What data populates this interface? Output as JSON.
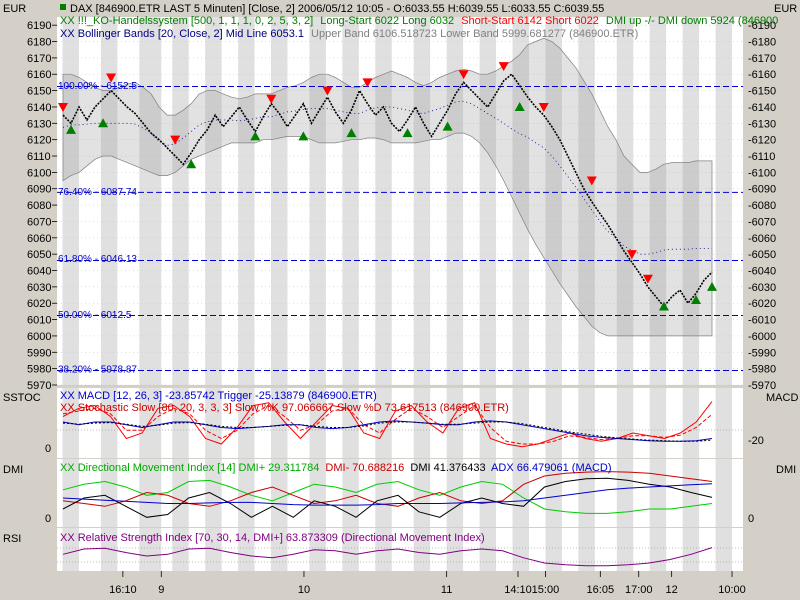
{
  "header": {
    "left_currency": "EUR",
    "right_currency": "EUR",
    "line1": "DAX [846900.ETR LAST 5 Minuten] [Close, 2] 2006/05/12 10:05 - O:6033.55 H:6039.55 L:6033.55 C:6039.55",
    "line2a": "XX !!!_KO-Handelssystem [500, 1, 1, 1, 0, 2, 5, 3, 2]",
    "line2b": "Long-Start 6022 Long 6032",
    "line2c": "Short-Start 6142 Short 6022",
    "line2d": "DMI up -/- DMI down 5924 (846900",
    "line3a": "XX Bollinger Bands [20, Close, 2] Mid Line 6053.1",
    "line3b": "Upper Band 6106.518723 Lower Band 5999.681277 (846900.ETR)"
  },
  "fib_labels": [
    {
      "text": "100.00% - 6152.5",
      "value": 6153.5
    },
    {
      "text": "76.40% - 6087.74",
      "value": 6088.5
    },
    {
      "text": "61.80% - 6046.13",
      "value": 6047.5
    },
    {
      "text": "50.00% - 6012.5",
      "value": 6013.5
    },
    {
      "text": "38.20% - 5978.87",
      "value": 5980
    }
  ],
  "panels": {
    "macd": {
      "side_label_left": "SSTOC",
      "side_label_right": "MACD",
      "title1": "XX MACD [12, 26, 3] -23.85742 Trigger -25.13879 (846900.ETR)",
      "title2": "XX Stochastic Slow [80, 20, 3, 3, 3] Slow %K 97.066667 Slow %D 73.617513 (846900.ETR)",
      "left_tick": "0",
      "right_tick": "-20"
    },
    "dmi": {
      "side_label_left": "DMI",
      "side_label_right": "DMI",
      "title1": "XX Directional Movement Index [14] DMI+ 29.311784",
      "title2": "DMI- 70.688216",
      "title3": "DMI 41.376433",
      "title4": "ADX 66.479061 (MACD)",
      "left_tick": "0",
      "right_tick": "0"
    },
    "rsi": {
      "side_label_left": "RSI",
      "title": "XX Relative Strength Index [70, 30, 14, DMI+] 63.873309 (Directional Movement Index)"
    }
  },
  "colors": {
    "background": "#ffffff",
    "shade": "#e0e0e0",
    "price": "#000000",
    "long_signal": "#008000",
    "short_signal": "#ff0000",
    "bollinger": "#808080",
    "fib": "#0000cc",
    "macd": "#0000cc",
    "stoch": "#ff0000",
    "dmi_plus": "#00cc00",
    "dmi_minus": "#cc0000",
    "adx": "#0000cc",
    "rsi": "#800080"
  },
  "chart_data": {
    "type": "line",
    "instrument": "DAX 846900.ETR",
    "interval": "5 Minuten",
    "y_axis": {
      "ylim": [
        5970,
        6195
      ],
      "ticks": [
        5970,
        5980,
        5990,
        6000,
        6010,
        6020,
        6030,
        6040,
        6050,
        6060,
        6070,
        6080,
        6090,
        6100,
        6110,
        6120,
        6130,
        6140,
        6150,
        6160,
        6170,
        6180,
        6190
      ]
    },
    "x_axis": {
      "labels": [
        {
          "text": "16:10",
          "idx": 12
        },
        {
          "text": "9",
          "idx": 19
        },
        {
          "text": "10",
          "idx": 45
        },
        {
          "text": "11",
          "idx": 71
        },
        {
          "text": "14:10",
          "idx": 84
        },
        {
          "text": "15:00",
          "idx": 89
        },
        {
          "text": "16:05",
          "idx": 99
        },
        {
          "text": "17:00",
          "idx": 106
        },
        {
          "text": "12",
          "idx": 112
        },
        {
          "text": "10:00",
          "idx": 123
        }
      ]
    },
    "shaded_bands": [
      [
        1,
        3
      ],
      [
        8,
        10
      ],
      [
        15,
        18
      ],
      [
        21,
        23
      ],
      [
        27,
        29
      ],
      [
        33,
        35
      ],
      [
        39,
        41
      ],
      [
        46,
        48
      ],
      [
        52,
        54
      ],
      [
        58,
        60
      ],
      [
        65,
        67
      ],
      [
        71,
        73
      ],
      [
        77,
        79
      ],
      [
        83,
        85
      ],
      [
        89,
        91
      ],
      [
        95,
        97
      ],
      [
        102,
        104
      ],
      [
        108,
        110
      ],
      [
        114,
        116
      ],
      [
        120,
        122
      ]
    ],
    "price": {
      "name": "DAX",
      "values": [
        6135,
        6130,
        6140,
        6132,
        6140,
        6145,
        6150,
        6145,
        6140,
        6136,
        6130,
        6124,
        6120,
        6115,
        6110,
        6105,
        6112,
        6120,
        6126,
        6135,
        6128,
        6134,
        6140,
        6132,
        6125,
        6134,
        6142,
        6136,
        6128,
        6135,
        6142,
        6130,
        6138,
        6146,
        6137,
        6130,
        6138,
        6150,
        6142,
        6135,
        6140,
        6130,
        6125,
        6132,
        6140,
        6130,
        6122,
        6130,
        6138,
        6148,
        6155,
        6150,
        6145,
        6140,
        6148,
        6156,
        6160,
        6153,
        6146,
        6140,
        6135,
        6128,
        6120,
        6110,
        6100,
        6090,
        6082,
        6075,
        6068,
        6060,
        6052,
        6045,
        6038,
        6030,
        6024,
        6018,
        6024,
        6028,
        6020,
        6026,
        6034,
        6039
      ]
    },
    "bollinger": {
      "upper": [
        6160,
        6160,
        6158,
        6155,
        6152,
        6150,
        6150,
        6152,
        6154,
        6155,
        6152,
        6148,
        6140,
        6135,
        6135,
        6138,
        6142,
        6148,
        6150,
        6150,
        6148,
        6146,
        6145,
        6146,
        6148,
        6148,
        6148,
        6150,
        6152,
        6153,
        6155,
        6158,
        6160,
        6160,
        6158,
        6155,
        6152,
        6152,
        6155,
        6158,
        6160,
        6162,
        6160,
        6158,
        6155,
        6153,
        6155,
        6158,
        6160,
        6162,
        6163,
        6162,
        6160,
        6160,
        6162,
        6165,
        6168,
        6172,
        6178,
        6180,
        6182,
        6180,
        6176,
        6170,
        6164,
        6156,
        6148,
        6138,
        6128,
        6120,
        6110,
        6105,
        6100,
        6100,
        6102,
        6105,
        6106,
        6106,
        6106,
        6107,
        6107,
        6107
      ],
      "lower": [
        6095,
        6098,
        6100,
        6104,
        6108,
        6110,
        6110,
        6108,
        6106,
        6104,
        6102,
        6100,
        6098,
        6098,
        6100,
        6104,
        6108,
        6110,
        6112,
        6114,
        6116,
        6118,
        6118,
        6118,
        6118,
        6120,
        6120,
        6121,
        6122,
        6122,
        6122,
        6120,
        6118,
        6118,
        6118,
        6119,
        6120,
        6120,
        6121,
        6121,
        6120,
        6118,
        6118,
        6118,
        6118,
        6119,
        6120,
        6120,
        6122,
        6124,
        6124,
        6122,
        6118,
        6112,
        6104,
        6095,
        6085,
        6075,
        6065,
        6056,
        6048,
        6040,
        6032,
        6025,
        6018,
        6012,
        6006,
        6002,
        6000,
        6000,
        6000,
        6000,
        6000,
        6000,
        6000,
        6000,
        6000,
        6000,
        6000,
        6000,
        6000,
        6000
      ],
      "mid_line_value": 6053.1
    },
    "signals": {
      "long_up": [
        [
          1,
          6126
        ],
        [
          5,
          6130
        ],
        [
          16,
          6105
        ],
        [
          24,
          6122
        ],
        [
          30,
          6122
        ],
        [
          36,
          6124
        ],
        [
          43,
          6124
        ],
        [
          48,
          6128
        ],
        [
          57,
          6140
        ],
        [
          75,
          6018
        ],
        [
          79,
          6022
        ],
        [
          81,
          6030
        ]
      ],
      "short_down": [
        [
          0,
          6140
        ],
        [
          6,
          6158
        ],
        [
          14,
          6120
        ],
        [
          26,
          6145
        ],
        [
          33,
          6150
        ],
        [
          38,
          6155
        ],
        [
          50,
          6160
        ],
        [
          55,
          6165
        ],
        [
          60,
          6140
        ],
        [
          66,
          6095
        ],
        [
          71,
          6050
        ],
        [
          73,
          6035
        ]
      ]
    },
    "fibonacci_levels": [
      {
        "pct": "100.00%",
        "value": 6152.5
      },
      {
        "pct": "76.40%",
        "value": 6087.74
      },
      {
        "pct": "61.80%",
        "value": 6046.13
      },
      {
        "pct": "50.00%",
        "value": 6012.5
      },
      {
        "pct": "38.20%",
        "value": 5978.87
      }
    ],
    "indicators": {
      "macd": {
        "values": [
          0.6,
          0.55,
          0.6,
          0.6,
          0.55,
          0.5,
          0.55,
          0.6,
          0.6,
          0.55,
          0.5,
          0.48,
          0.5,
          0.52,
          0.55,
          0.55,
          0.5,
          0.48,
          0.5,
          0.55,
          0.6,
          0.62,
          0.6,
          0.58,
          0.55,
          0.55,
          0.6,
          0.62,
          0.6,
          0.55,
          0.5,
          0.45,
          0.4,
          0.35,
          0.32,
          0.3,
          0.28,
          0.26,
          0.25,
          0.25,
          0.26,
          0.3
        ],
        "value": -23.85742
      },
      "macd_trigger": {
        "values": [
          0.58,
          0.56,
          0.58,
          0.59,
          0.56,
          0.52,
          0.54,
          0.58,
          0.59,
          0.56,
          0.52,
          0.5,
          0.5,
          0.52,
          0.54,
          0.55,
          0.52,
          0.5,
          0.5,
          0.53,
          0.58,
          0.6,
          0.6,
          0.58,
          0.56,
          0.56,
          0.58,
          0.6,
          0.6,
          0.57,
          0.52,
          0.47,
          0.42,
          0.38,
          0.34,
          0.31,
          0.29,
          0.27,
          0.26,
          0.25,
          0.25,
          0.27
        ],
        "value": -25.13879
      },
      "stoch_k": {
        "values": [
          0.7,
          0.85,
          0.9,
          0.7,
          0.3,
          0.4,
          0.85,
          0.9,
          0.7,
          0.3,
          0.2,
          0.5,
          0.9,
          0.95,
          0.6,
          0.3,
          0.6,
          0.9,
          0.85,
          0.4,
          0.3,
          0.8,
          0.9,
          0.6,
          0.4,
          0.85,
          0.95,
          0.3,
          0.2,
          0.15,
          0.2,
          0.3,
          0.4,
          0.3,
          0.25,
          0.3,
          0.4,
          0.35,
          0.3,
          0.4,
          0.6,
          0.97
        ],
        "value": 97.066667
      },
      "stoch_d": {
        "values": [
          0.75,
          0.8,
          0.85,
          0.75,
          0.45,
          0.45,
          0.7,
          0.85,
          0.75,
          0.45,
          0.3,
          0.45,
          0.75,
          0.9,
          0.7,
          0.45,
          0.55,
          0.8,
          0.85,
          0.55,
          0.4,
          0.65,
          0.85,
          0.7,
          0.5,
          0.7,
          0.9,
          0.5,
          0.25,
          0.2,
          0.2,
          0.25,
          0.35,
          0.32,
          0.28,
          0.3,
          0.35,
          0.35,
          0.32,
          0.36,
          0.5,
          0.74
        ],
        "value": 73.617513
      },
      "dmi_plus": {
        "values": [
          0.55,
          0.65,
          0.7,
          0.6,
          0.45,
          0.5,
          0.7,
          0.72,
          0.6,
          0.45,
          0.35,
          0.5,
          0.65,
          0.6,
          0.5,
          0.65,
          0.7,
          0.55,
          0.45,
          0.6,
          0.7,
          0.65,
          0.4,
          0.2,
          0.15,
          0.12,
          0.12,
          0.15,
          0.2,
          0.2,
          0.25,
          0.3
        ],
        "value": 29.311784
      },
      "dmi_minus": {
        "values": [
          0.35,
          0.3,
          0.25,
          0.35,
          0.5,
          0.45,
          0.3,
          0.25,
          0.35,
          0.5,
          0.6,
          0.45,
          0.3,
          0.35,
          0.45,
          0.3,
          0.25,
          0.4,
          0.5,
          0.35,
          0.3,
          0.35,
          0.65,
          0.8,
          0.85,
          0.87,
          0.88,
          0.87,
          0.85,
          0.8,
          0.75,
          0.7
        ],
        "value": 70.688216
      },
      "dmi": {
        "values": [
          0.2,
          0.4,
          0.45,
          0.25,
          0.05,
          0.1,
          0.4,
          0.5,
          0.3,
          0.05,
          0.25,
          0.05,
          0.35,
          0.25,
          0.05,
          0.35,
          0.45,
          0.15,
          0.05,
          0.3,
          0.4,
          0.3,
          0.25,
          0.6,
          0.7,
          0.75,
          0.76,
          0.72,
          0.65,
          0.6,
          0.5,
          0.41
        ],
        "value": 41.376433
      },
      "adx": {
        "values": [
          0.4,
          0.38,
          0.36,
          0.34,
          0.32,
          0.3,
          0.3,
          0.31,
          0.32,
          0.32,
          0.3,
          0.28,
          0.27,
          0.27,
          0.27,
          0.28,
          0.3,
          0.3,
          0.3,
          0.31,
          0.32,
          0.33,
          0.35,
          0.4,
          0.45,
          0.5,
          0.55,
          0.58,
          0.6,
          0.62,
          0.64,
          0.66
        ],
        "value": 66.479061
      },
      "rsi": {
        "values": [
          0.45,
          0.6,
          0.62,
          0.5,
          0.4,
          0.45,
          0.6,
          0.62,
          0.5,
          0.4,
          0.35,
          0.45,
          0.58,
          0.55,
          0.45,
          0.55,
          0.6,
          0.5,
          0.45,
          0.55,
          0.6,
          0.55,
          0.35,
          0.2,
          0.15,
          0.12,
          0.12,
          0.15,
          0.2,
          0.3,
          0.45,
          0.64
        ],
        "value": 63.873309
      }
    }
  }
}
